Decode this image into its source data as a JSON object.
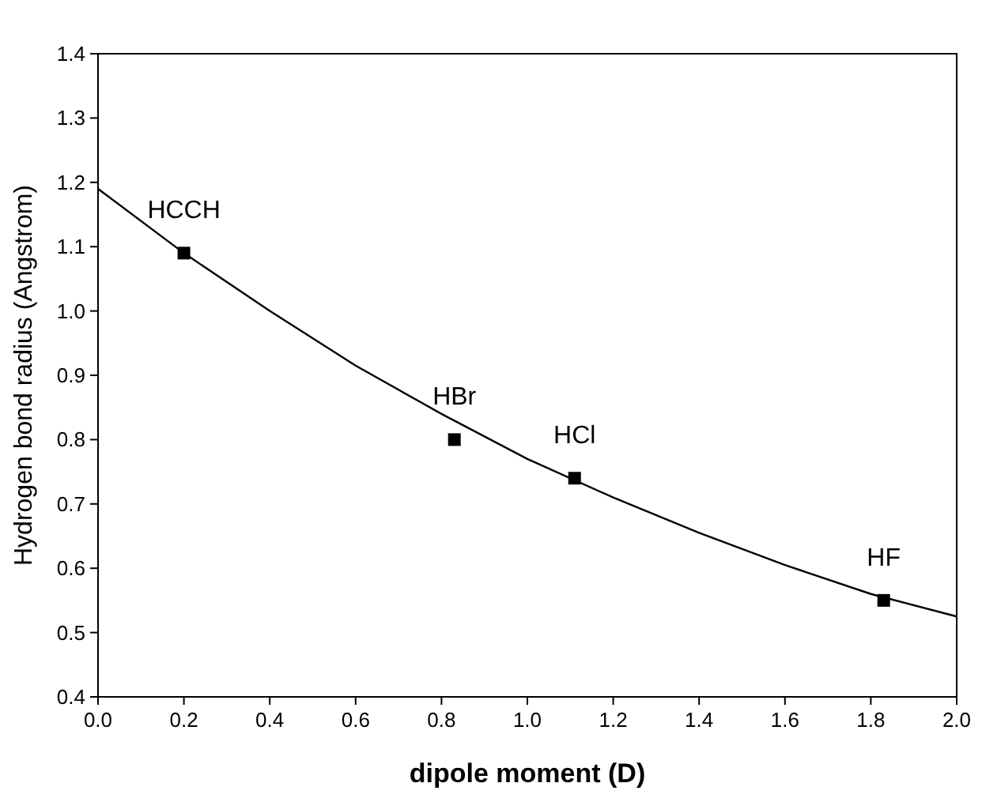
{
  "chart_data": {
    "type": "scatter",
    "xlabel": "dipole moment (D)",
    "ylabel": "Hydrogen bond radius (Angstrom)",
    "xlim": [
      0,
      2.0
    ],
    "xticks": [
      {
        "value": 0,
        "label": "0.0"
      },
      0.2,
      0.4,
      0.6,
      0.8,
      {
        "value": 1,
        "label": "1.0"
      },
      1.2,
      1.4,
      1.6,
      1.8,
      {
        "value": 2,
        "label": "2.0"
      }
    ],
    "ylim": [
      0.4,
      1.4
    ],
    "yticks": [
      0.4,
      0.5,
      0.6,
      0.7,
      0.8,
      0.9,
      {
        "value": 1,
        "label": "1.0"
      },
      1.1,
      1.2,
      1.3,
      1.4
    ],
    "grid": false,
    "series": [
      {
        "color": "#000000",
        "marker": "square",
        "x": [
          0.2,
          0.83,
          1.11,
          1.83
        ],
        "values": [
          1.09,
          0.8,
          0.74,
          0.55
        ]
      },
      {
        "type": "line",
        "color": "#000000",
        "marker": "none",
        "line_style": "solid",
        "x": [
          0,
          0.2,
          0.4,
          0.6,
          0.8,
          1.0,
          1.2,
          1.4,
          1.6,
          1.8,
          2.0
        ],
        "values": [
          1.19,
          1.09,
          1.0,
          0.915,
          0.84,
          0.77,
          0.71,
          0.655,
          0.605,
          0.56,
          0.525
        ]
      }
    ],
    "annotations": [
      {
        "text": "HCCH",
        "x": 0.2,
        "y": 1.09
      },
      {
        "text": "HBr",
        "x": 0.83,
        "y": 0.8
      },
      {
        "text": "HCl",
        "x": 1.11,
        "y": 0.74
      },
      {
        "text": "HF",
        "x": 1.83,
        "y": 0.55
      }
    ]
  }
}
